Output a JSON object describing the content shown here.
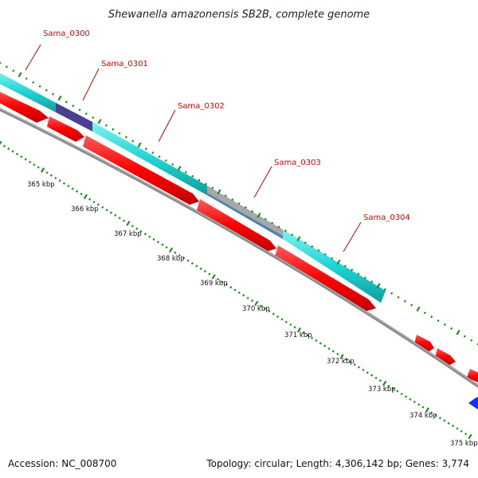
{
  "title": "Shewanella amazonensis SB2B, complete genome",
  "genes": [
    {
      "label": "Sama_0300",
      "color": "#dd0000"
    },
    {
      "label": "Sama_0301",
      "color": "#dd0000"
    },
    {
      "label": "Sama_0302",
      "color": "#dd0000"
    },
    {
      "label": "Sama_0303",
      "color": "#dd0000"
    },
    {
      "label": "Sama_0304",
      "color": "#dd0000"
    }
  ],
  "ticks": [
    "365 kbp",
    "366 kbp",
    "367 kbp",
    "368 kbp",
    "369 kbp",
    "370 kbp",
    "371 kbp",
    "372 kbp",
    "373 kbp",
    "374 kbp",
    "375 kbp"
  ],
  "footer": {
    "accession": "Accession: NC_008700",
    "summary": "Topology: circular; Length: 4,306,142 bp; Genes: 3,774"
  },
  "colors": {
    "cds": "#ff0000",
    "cds_dark": "#b00000",
    "cog_cyan": "#22d3d3",
    "cog_purple": "#4b3f8f",
    "cog_grey": "#a8a8a8",
    "cog_steel": "#4f84b0",
    "backbone": "#8a8a8a",
    "ticks": "#0a8a0a",
    "reverse": "#1530ee"
  }
}
